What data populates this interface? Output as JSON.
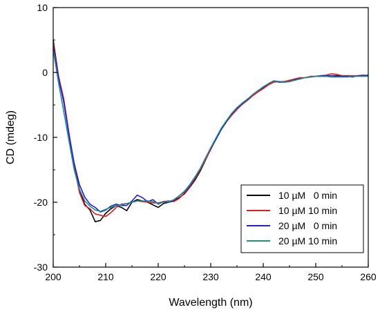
{
  "chart_data": {
    "type": "line",
    "title": "",
    "xlabel": "Wavelength (nm)",
    "ylabel": "CD (mdeg)",
    "xlim": [
      200,
      260
    ],
    "ylim": [
      -30,
      10
    ],
    "xticks": [
      200,
      210,
      220,
      230,
      240,
      250,
      260
    ],
    "yticks": [
      -30,
      -20,
      -10,
      0,
      10
    ],
    "xtick_labels": [
      "200",
      "210",
      "220",
      "230",
      "240",
      "250",
      "260"
    ],
    "ytick_labels": [
      "-30",
      "-20",
      "-10",
      "0",
      "10"
    ],
    "grid": false,
    "legend_position": "bottom-right",
    "series": [
      {
        "name": "10 µM   0 min",
        "color": "#000000",
        "x": [
          200,
          201,
          202,
          203,
          204,
          205,
          206,
          207,
          208,
          209,
          210,
          211,
          212,
          213,
          214,
          215,
          216,
          217,
          218,
          219,
          220,
          221,
          222,
          223,
          224,
          225,
          226,
          227,
          228,
          229,
          230,
          231,
          232,
          233,
          234,
          235,
          236,
          237,
          238,
          239,
          240,
          241,
          242,
          243,
          244,
          245,
          246,
          247,
          248,
          249,
          250,
          251,
          252,
          253,
          254,
          255,
          256,
          257,
          258,
          259,
          260
        ],
        "y": [
          5,
          -0.5,
          -4.5,
          -9.5,
          -14.5,
          -18,
          -20.3,
          -21.2,
          -23,
          -22.8,
          -21.7,
          -21,
          -20.5,
          -20.8,
          -21.3,
          -20,
          -19.6,
          -19.8,
          -20,
          -20.4,
          -20.8,
          -20.2,
          -20,
          -19.8,
          -19.3,
          -18.7,
          -17.7,
          -16.6,
          -15.2,
          -13.5,
          -11.8,
          -10.3,
          -8.8,
          -7.6,
          -6.4,
          -5.5,
          -4.9,
          -4.2,
          -3.5,
          -2.9,
          -2.3,
          -1.8,
          -1.3,
          -1.4,
          -1.5,
          -1.3,
          -1.1,
          -0.9,
          -0.8,
          -0.7,
          -0.6,
          -0.6,
          -0.6,
          -0.5,
          -0.5,
          -0.5,
          -0.6,
          -0.6,
          -0.5,
          -0.5,
          -0.5
        ]
      },
      {
        "name": "10 µM 10 min",
        "color": "#e8191c",
        "x": [
          200,
          201,
          202,
          203,
          204,
          205,
          206,
          207,
          208,
          209,
          210,
          211,
          212,
          213,
          214,
          215,
          216,
          217,
          218,
          219,
          220,
          221,
          222,
          223,
          224,
          225,
          226,
          227,
          228,
          229,
          230,
          231,
          232,
          233,
          234,
          235,
          236,
          237,
          238,
          239,
          240,
          241,
          242,
          243,
          244,
          245,
          246,
          247,
          248,
          249,
          250,
          251,
          252,
          253,
          254,
          255,
          256,
          257,
          258,
          259,
          260
        ],
        "y": [
          4.5,
          -0.5,
          -4,
          -9.3,
          -14.5,
          -18.5,
          -20.5,
          -21,
          -21.8,
          -22,
          -22.2,
          -21.6,
          -20.8,
          -20.3,
          -20.2,
          -20,
          -19.8,
          -19.9,
          -20,
          -20.1,
          -20.1,
          -19.9,
          -19.8,
          -19.9,
          -19.4,
          -18.6,
          -17.6,
          -16.4,
          -15,
          -13.4,
          -11.9,
          -10.2,
          -8.7,
          -7.6,
          -6.6,
          -5.7,
          -4.9,
          -4.3,
          -3.6,
          -3,
          -2.5,
          -1.9,
          -1.5,
          -1.4,
          -1.4,
          -1.2,
          -1,
          -0.8,
          -0.8,
          -0.6,
          -0.6,
          -0.5,
          -0.4,
          -0.2,
          -0.3,
          -0.5,
          -0.5,
          -0.5,
          -0.5,
          -0.4,
          -0.5
        ]
      },
      {
        "name": "20 µM   0 min",
        "color": "#1f1fd6",
        "x": [
          200,
          201,
          202,
          203,
          204,
          205,
          206,
          207,
          208,
          209,
          210,
          211,
          212,
          213,
          214,
          215,
          216,
          217,
          218,
          219,
          220,
          221,
          222,
          223,
          224,
          225,
          226,
          227,
          228,
          229,
          230,
          231,
          232,
          233,
          234,
          235,
          236,
          237,
          238,
          239,
          240,
          241,
          242,
          243,
          244,
          245,
          246,
          247,
          248,
          249,
          250,
          251,
          252,
          253,
          254,
          255,
          256,
          257,
          258,
          259,
          260
        ],
        "y": [
          4,
          -0.8,
          -4.5,
          -9.5,
          -14,
          -17.3,
          -19.2,
          -20.3,
          -20.8,
          -21.5,
          -21.2,
          -20.6,
          -20.3,
          -20.5,
          -20.5,
          -19.8,
          -18.9,
          -19.3,
          -19.9,
          -19.6,
          -20.3,
          -19.9,
          -20,
          -19.7,
          -19,
          -18.4,
          -17.4,
          -16.2,
          -14.8,
          -13.2,
          -11.7,
          -10.3,
          -8.8,
          -7.5,
          -6.4,
          -5.5,
          -4.8,
          -4.2,
          -3.4,
          -2.8,
          -2.3,
          -1.7,
          -1.3,
          -1.5,
          -1.5,
          -1.4,
          -1.1,
          -1,
          -0.8,
          -0.7,
          -0.6,
          -0.5,
          -0.5,
          -0.5,
          -0.6,
          -0.6,
          -0.6,
          -0.7,
          -0.5,
          -0.5,
          -0.4
        ]
      },
      {
        "name": "20 µM 10 min",
        "color": "#1e8a8c",
        "x": [
          200,
          201,
          202,
          203,
          204,
          205,
          206,
          207,
          208,
          209,
          210,
          211,
          212,
          213,
          214,
          215,
          216,
          217,
          218,
          219,
          220,
          221,
          222,
          223,
          224,
          225,
          226,
          227,
          228,
          229,
          230,
          231,
          232,
          233,
          234,
          235,
          236,
          237,
          238,
          239,
          240,
          241,
          242,
          243,
          244,
          245,
          246,
          247,
          248,
          249,
          250,
          251,
          252,
          253,
          254,
          255,
          256,
          257,
          258,
          259,
          260
        ],
        "y": [
          3.5,
          -1.5,
          -6,
          -10.5,
          -15,
          -18,
          -19.8,
          -20.6,
          -21.2,
          -21.4,
          -21.1,
          -20.8,
          -20.5,
          -20.4,
          -20.2,
          -20,
          -19.8,
          -19.8,
          -19.8,
          -19.9,
          -20.2,
          -20,
          -19.9,
          -19.6,
          -19,
          -18.3,
          -17.3,
          -16.1,
          -14.8,
          -13.2,
          -11.6,
          -10.1,
          -8.6,
          -7.4,
          -6.3,
          -5.4,
          -4.7,
          -4.1,
          -3.4,
          -2.8,
          -2.2,
          -1.7,
          -1.3,
          -1.4,
          -1.5,
          -1.4,
          -1.2,
          -1,
          -0.8,
          -0.7,
          -0.6,
          -0.6,
          -0.6,
          -0.7,
          -0.7,
          -0.7,
          -0.7,
          -0.6,
          -0.6,
          -0.6,
          -0.6
        ]
      }
    ]
  }
}
